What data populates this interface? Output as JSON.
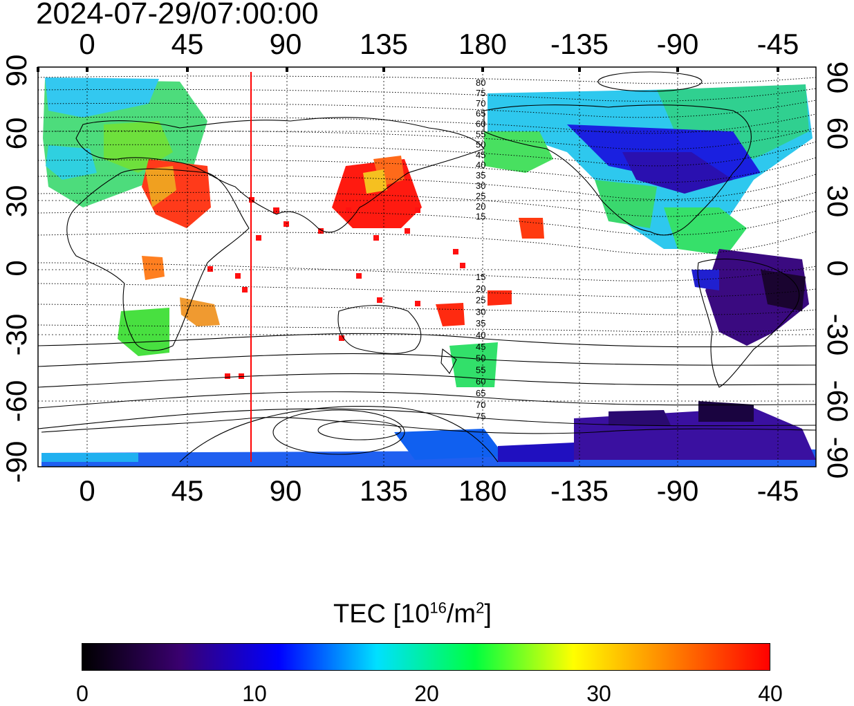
{
  "timestamp": "2024-07-29/07:00:00",
  "map": {
    "lon_ticks": [
      "0",
      "45",
      "90",
      "135",
      "180",
      "-135",
      "-90",
      "-45"
    ],
    "lat_ticks_left": [
      "90",
      "60",
      "30",
      "0",
      "-30",
      "-60",
      "-90"
    ],
    "lat_ticks_right": [
      "90",
      "60",
      "30",
      "0",
      "-30",
      "-60",
      "-90"
    ],
    "contour_labels_north": [
      "80",
      "75",
      "70",
      "65",
      "60",
      "55",
      "50",
      "45",
      "40",
      "35",
      "30",
      "25",
      "20",
      "15"
    ],
    "contour_labels_south": [
      "15",
      "20",
      "25",
      "30",
      "35",
      "40",
      "45",
      "50",
      "55",
      "60",
      "65",
      "70",
      "75"
    ],
    "marker_line_color": "#ff0000",
    "marker_line_lon": 75
  },
  "colorbar": {
    "title_prefix": "TEC  [10",
    "title_exp": "16",
    "title_mid": "/m",
    "title_exp2": "2",
    "title_suffix": "]",
    "ticks": [
      "0",
      "10",
      "20",
      "30",
      "40"
    ],
    "min": 0,
    "max": 40,
    "colors": [
      "#000000",
      "#3a0070",
      "#0000ff",
      "#00e0ff",
      "#00ff40",
      "#ffff00",
      "#ff8000",
      "#ff0000"
    ]
  }
}
